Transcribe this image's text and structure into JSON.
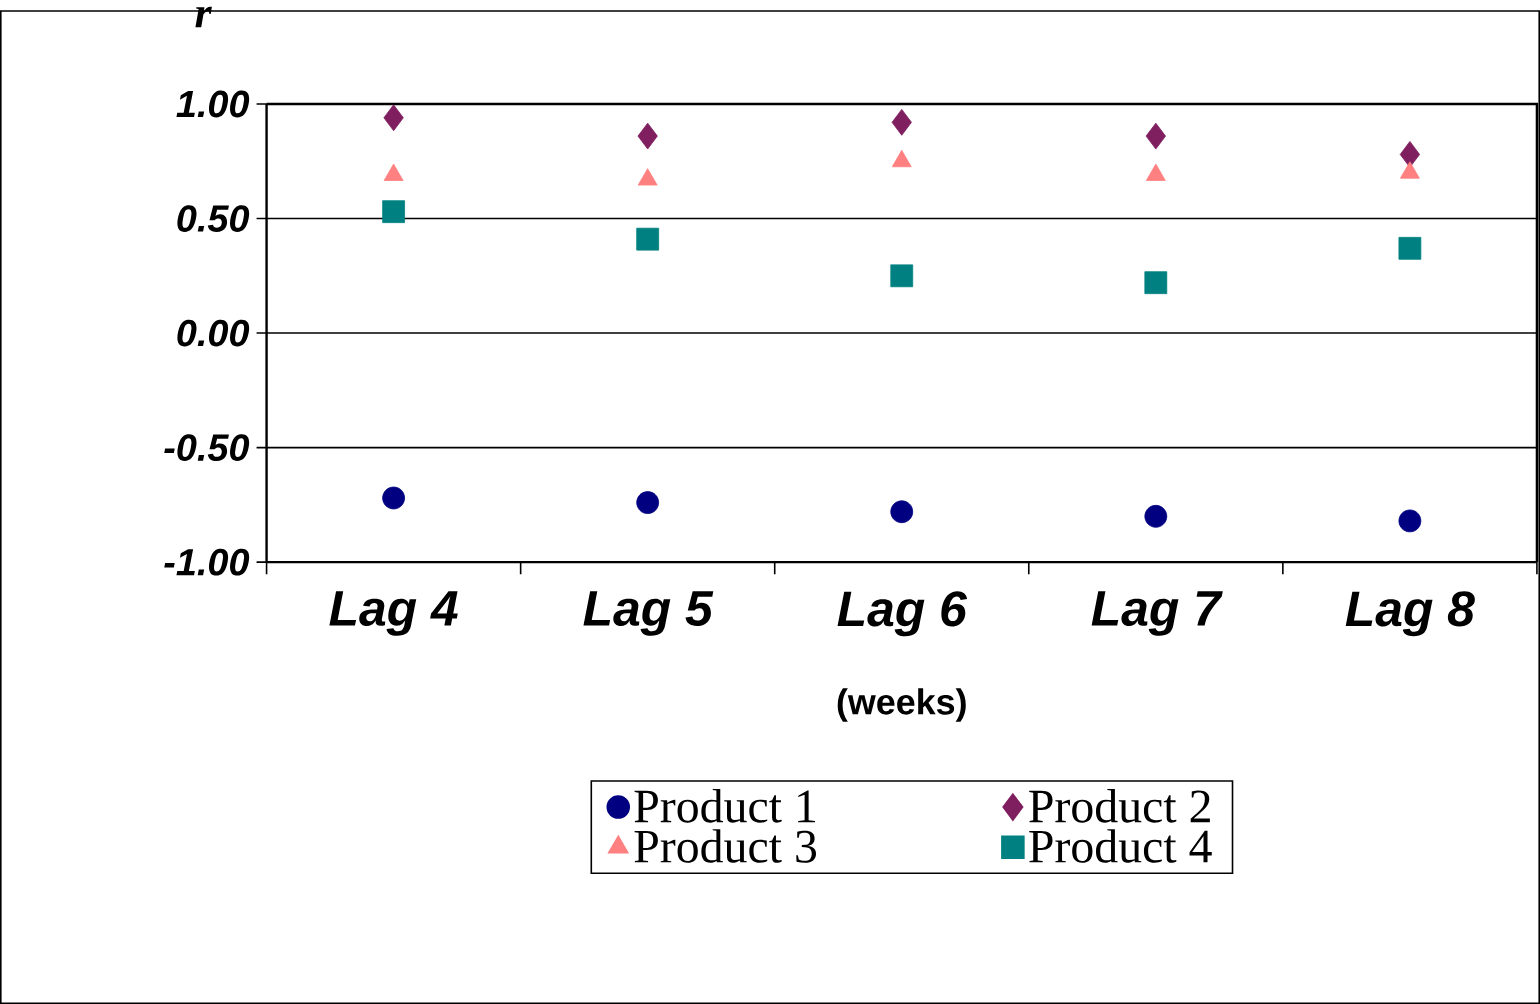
{
  "chart_data": {
    "type": "scatter",
    "ylabel": "r",
    "xlabel": "(weeks)",
    "categories": [
      "Lag 4",
      "Lag 5",
      "Lag 6",
      "Lag 7",
      "Lag 8"
    ],
    "series": [
      {
        "name": "Product 1",
        "color": "#000080",
        "marker": "circle",
        "values": [
          -0.72,
          -0.74,
          -0.78,
          -0.8,
          -0.82
        ]
      },
      {
        "name": "Product 2",
        "color": "#7f1f5f",
        "marker": "diamond",
        "values": [
          0.94,
          0.86,
          0.92,
          0.86,
          0.78
        ]
      },
      {
        "name": "Product 3",
        "color": "#ff8080",
        "marker": "triangle",
        "values": [
          0.69,
          0.67,
          0.75,
          0.69,
          0.7
        ]
      },
      {
        "name": "Product 4",
        "color": "#008080",
        "marker": "square",
        "values": [
          0.53,
          0.41,
          0.25,
          0.22,
          0.37
        ]
      }
    ],
    "ylim": [
      -1,
      1
    ],
    "yticks": [
      {
        "value": -1,
        "label": "-1.00"
      },
      {
        "value": -0.5,
        "label": "-0.50"
      },
      {
        "value": 0,
        "label": "0.00"
      },
      {
        "value": 0.5,
        "label": "0.50"
      },
      {
        "value": 1,
        "label": "1.00"
      }
    ],
    "grid": "y",
    "legend": "bottom"
  }
}
